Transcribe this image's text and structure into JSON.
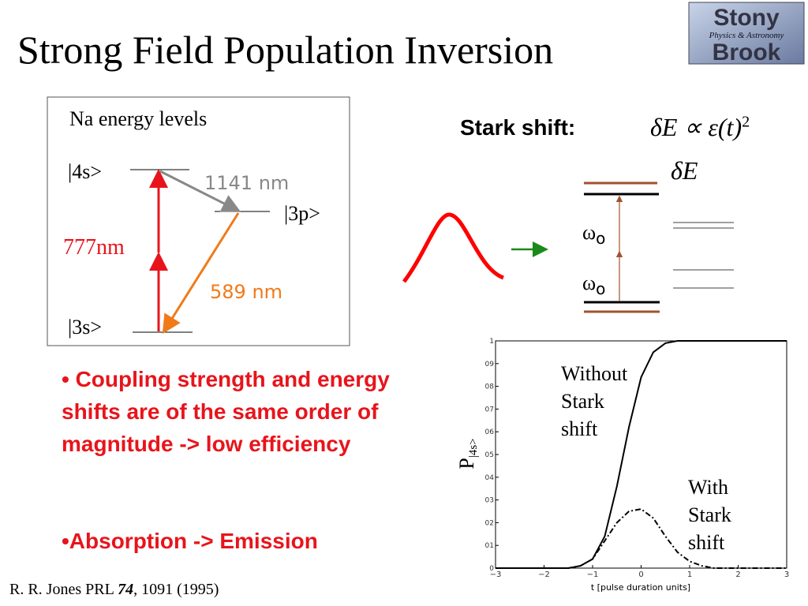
{
  "title": "Strong Field Population Inversion",
  "logo": {
    "top": "Stony",
    "middle": "Physics & Astronomy",
    "bottom": "Brook"
  },
  "energy_diagram": {
    "heading": "Na energy levels",
    "levels": [
      "|4s>",
      "|3p>",
      "|3s>"
    ],
    "transitions": [
      "1141 nm",
      "777nm",
      "589 nm"
    ]
  },
  "stark": {
    "label": "Stark shift:",
    "formula": "δE ∝ ε(t)",
    "formula_exponent": "2",
    "shift_label": "δE",
    "omega": "ω",
    "omega_sub": "o"
  },
  "bullets": [
    "• Coupling strength and energy shifts are of the same order of magnitude -> low efficiency",
    "•Absorption -> Emission"
  ],
  "reference": {
    "authors": "R. R. Jones PRL ",
    "volume": "74",
    "rest": ", 1091 (1995)"
  },
  "chart_data": {
    "type": "line",
    "xlabel": "t [pulse duration units]",
    "ylabel": "P",
    "ylabel_sub": "|4s>",
    "xlim": [
      -3,
      3
    ],
    "ylim": [
      0,
      1
    ],
    "xticks": [
      {
        "value": -3,
        "label": "−3"
      },
      {
        "value": -2,
        "label": "−2"
      },
      {
        "value": -1,
        "label": "−1"
      },
      0,
      1,
      2,
      3
    ],
    "yticks": [
      0,
      {
        "value": 0.1,
        "label": "01"
      },
      {
        "value": 0.2,
        "label": "02"
      },
      {
        "value": 0.3,
        "label": "03"
      },
      {
        "value": 0.4,
        "label": "04"
      },
      {
        "value": 0.5,
        "label": "05"
      },
      {
        "value": 0.6,
        "label": "06"
      },
      {
        "value": 0.7,
        "label": "07"
      },
      {
        "value": 0.8,
        "label": "08"
      },
      {
        "value": 0.9,
        "label": "09"
      },
      1
    ],
    "x": [
      -3,
      -2.75,
      -2.5,
      -2.25,
      -2,
      -1.75,
      -1.5,
      -1.25,
      -1,
      -0.75,
      -0.5,
      -0.25,
      0,
      0.25,
      0.5,
      0.75,
      1,
      1.25,
      1.5,
      1.75,
      2,
      2.25,
      2.5,
      2.75,
      3
    ],
    "series": [
      {
        "name": "Without Stark shift",
        "color": "#000000",
        "style": "solid",
        "values": [
          0,
          0,
          0,
          0,
          0,
          0,
          0,
          0.01,
          0.04,
          0.14,
          0.36,
          0.62,
          0.84,
          0.95,
          0.99,
          1,
          1,
          1,
          1,
          1,
          1,
          1,
          1,
          1,
          1
        ]
      },
      {
        "name": "With Stark shift",
        "color": "#000000",
        "style": "dashdot",
        "values": [
          0,
          0,
          0,
          0,
          0,
          0,
          0,
          0.01,
          0.04,
          0.12,
          0.2,
          0.25,
          0.26,
          0.22,
          0.14,
          0.07,
          0.03,
          0.01,
          0,
          0,
          0,
          0,
          0,
          0,
          0
        ]
      }
    ]
  }
}
